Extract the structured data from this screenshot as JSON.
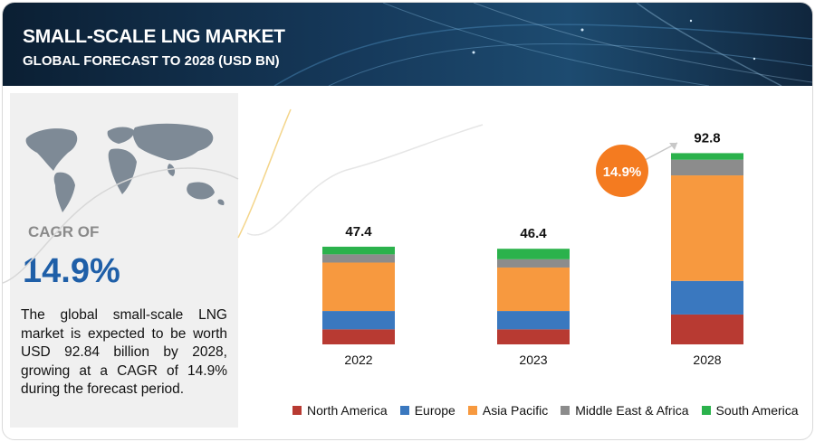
{
  "header": {
    "title": "SMALL-SCALE LNG MARKET",
    "subtitle": "GLOBAL FORECAST TO 2028 (USD BN)"
  },
  "sidebar": {
    "cagr_label": "CAGR OF",
    "cagr_value": "14.9%",
    "description": "The global small-scale LNG market is expected to be worth USD 92.84 billion by 2028, growing at a CAGR of 14.9% during the forecast period."
  },
  "cagr_badge": "14.9%",
  "chart_data": {
    "type": "bar",
    "stacked": true,
    "categories": [
      "2022",
      "2023",
      "2028"
    ],
    "totals": [
      "47.4",
      "46.4",
      "92.8"
    ],
    "series": [
      {
        "name": "North America",
        "color": "#b83a32",
        "values": [
          7.3,
          7.3,
          14.5
        ]
      },
      {
        "name": "Europe",
        "color": "#3a78bf",
        "values": [
          8.9,
          8.9,
          16.3
        ]
      },
      {
        "name": "Asia Pacific",
        "color": "#f7993f",
        "values": [
          23.5,
          21.1,
          51.2
        ]
      },
      {
        "name": "Middle East & Africa",
        "color": "#8c8c8c",
        "values": [
          4.0,
          4.0,
          7.6
        ]
      },
      {
        "name": "South America",
        "color": "#2bb24c",
        "values": [
          3.7,
          5.1,
          3.2
        ]
      }
    ],
    "ylim": [
      0,
      100
    ],
    "legend_position": "bottom",
    "grid": false
  }
}
